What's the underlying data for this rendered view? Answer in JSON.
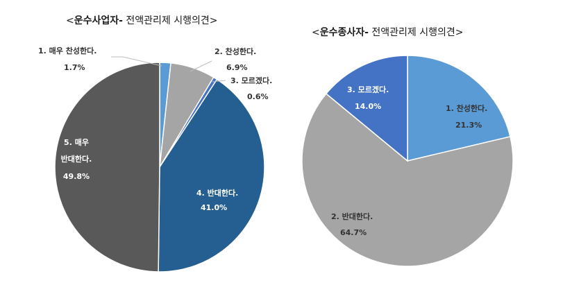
{
  "chart_data": [
    {
      "type": "pie",
      "title_bold": "운수사업자-",
      "title_rest": " 전액관리제 시행의견",
      "slices": [
        {
          "label": "1. 매우 찬성한다.",
          "value_text": "1.7%",
          "value": 1.7,
          "color": "#5b9bd5"
        },
        {
          "label": "2. 찬성한다.",
          "value_text": "6.9%",
          "value": 6.9,
          "color": "#a5a5a5"
        },
        {
          "label": "3. 모르겠다.",
          "value_text": "0.6%",
          "value": 0.6,
          "color": "#4472c4"
        },
        {
          "label": "4. 반대한다.",
          "value_text": "41.0%",
          "value": 41.0,
          "color": "#255e91"
        },
        {
          "label_line1": "5. 매우",
          "label_line2": "반대한다.",
          "value_text": "49.8%",
          "value": 49.8,
          "color": "#595959"
        }
      ]
    },
    {
      "type": "pie",
      "title_bold": "운수종사자-",
      "title_rest": " 전액관리제 시행의견",
      "slices": [
        {
          "label": "1. 찬성한다.",
          "value_text": "21.3%",
          "value": 21.3,
          "color": "#5b9bd5"
        },
        {
          "label": "2. 반대한다.",
          "value_text": "64.7%",
          "value": 64.7,
          "color": "#a5a5a5"
        },
        {
          "label": "3. 모르겠다.",
          "value_text": "14.0%",
          "value": 14.0,
          "color": "#4472c4"
        }
      ]
    }
  ]
}
